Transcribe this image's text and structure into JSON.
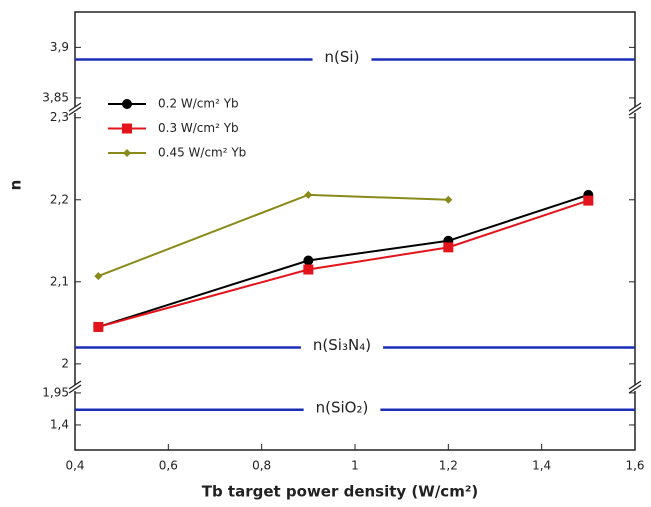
{
  "chart_data": {
    "type": "line",
    "xlabel": "Tb target power density (W/cm²)",
    "ylabel": "n",
    "xlim": [
      0.4,
      1.6
    ],
    "xticks": [
      {
        "value": 0.4,
        "label": "0,4"
      },
      {
        "value": 0.6,
        "label": "0,6"
      },
      {
        "value": 0.8,
        "label": "0,8"
      },
      1,
      {
        "value": 1.2,
        "label": "1,2"
      },
      {
        "value": 1.4,
        "label": "1,4"
      },
      {
        "value": 1.6,
        "label": "1,6"
      }
    ],
    "y_segments": [
      {
        "ylim": [
          3.84,
          3.935
        ],
        "yticks": [
          {
            "value": 3.85,
            "label": "3,85"
          },
          {
            "value": 3.9,
            "label": "3,9"
          }
        ]
      },
      {
        "ylim": [
          1.973,
          2.307
        ],
        "yticks": [
          2,
          {
            "value": 2.1,
            "label": "2,1"
          },
          {
            "value": 2.2,
            "label": "2,2"
          },
          {
            "value": 2.3,
            "label": "2,3"
          }
        ]
      },
      {
        "ylim": [
          0.97,
          2.0
        ],
        "yticks": [
          {
            "value": 1.4,
            "label": "1,4"
          },
          {
            "value": 1.95,
            "label": "1,95"
          }
        ]
      }
    ],
    "reference_lines": [
      {
        "label": "n(Si)",
        "value": 3.888,
        "color": "#1c2db8"
      },
      {
        "label": "n(Si₃N₄)",
        "value": 2.02,
        "color": "#1c2db8"
      },
      {
        "label": "n(SiO₂)",
        "value": 1.66,
        "color": "#1c2db8"
      }
    ],
    "series": [
      {
        "name": "0.2 W/cm² Yb",
        "color": "#000000",
        "marker": "circle",
        "x": [
          0.45,
          0.9,
          1.2,
          1.5
        ],
        "values": [
          2.045,
          2.126,
          2.15,
          2.206
        ]
      },
      {
        "name": "0.3 W/cm² Yb",
        "color": "#e3141b",
        "marker": "square",
        "x": [
          0.45,
          0.9,
          1.2,
          1.5
        ],
        "values": [
          2.045,
          2.115,
          2.142,
          2.199
        ]
      },
      {
        "name": "0.45 W/cm² Yb",
        "color": "#8a8a1a",
        "marker": "diamond",
        "x": [
          0.45,
          0.9,
          1.2
        ],
        "values": [
          2.107,
          2.206,
          2.2
        ]
      }
    ]
  }
}
